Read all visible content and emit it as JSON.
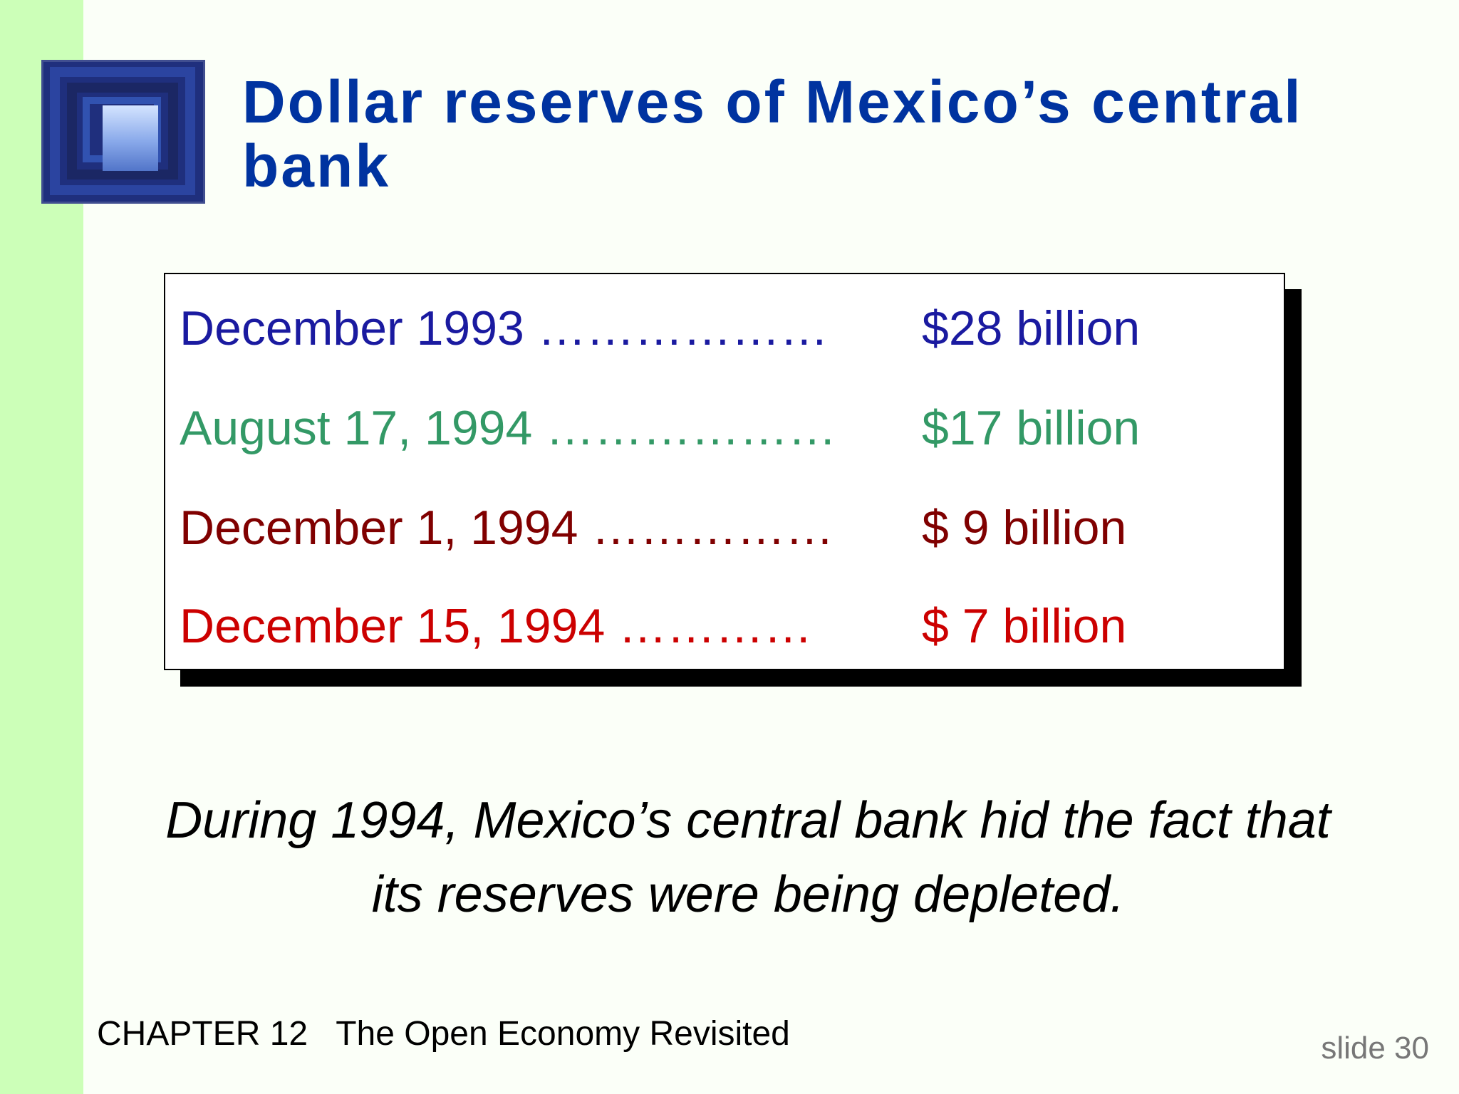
{
  "slide": {
    "title": "Dollar reserves of Mexico’s central bank",
    "reserves": [
      {
        "date": "December 1993 ………………",
        "amount": "$28 billion",
        "color": "#1a1aa0"
      },
      {
        "date": "August 17, 1994 ………………",
        "amount": "$17 billion",
        "color": "#339966"
      },
      {
        "date": "December 1, 1994 ……………",
        "amount": "$ 9 billion",
        "color": "#800000"
      },
      {
        "date": "December 15, 1994 …………",
        "amount": "$ 7 billion",
        "color": "#cc0000"
      }
    ],
    "note": "During 1994, Mexico’s central bank hid the fact that its reserves were being depleted.",
    "footer": {
      "chapter": "CHAPTER 12   The Open Economy Revisited",
      "slide_number": "slide 30"
    }
  },
  "colors": {
    "title": "#0033a0",
    "left_bar": "#ccffb8",
    "background": "#fbfff8"
  },
  "icons": {
    "logo": "window-tunnel-image"
  }
}
